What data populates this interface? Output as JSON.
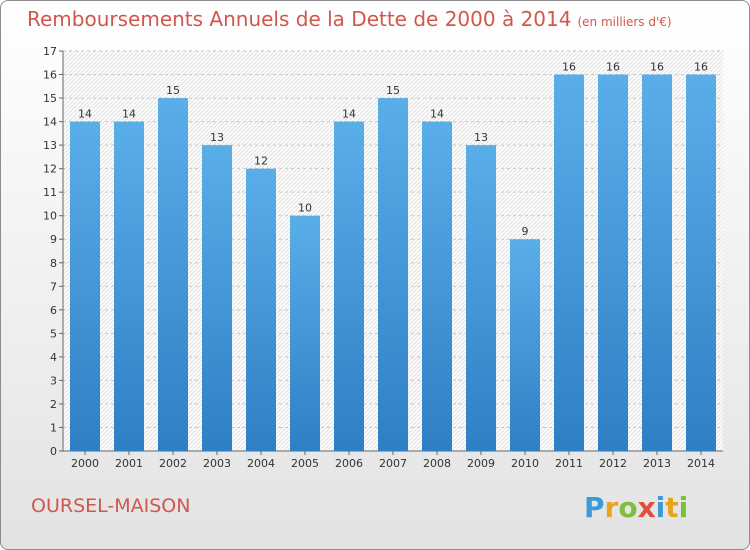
{
  "chart_data": {
    "type": "bar",
    "title": "Remboursements Annuels de la Dette de 2000 à 2014",
    "unit_note": "(en milliers d'€)",
    "categories": [
      "2000",
      "2001",
      "2002",
      "2003",
      "2004",
      "2005",
      "2006",
      "2007",
      "2008",
      "2009",
      "2010",
      "2011",
      "2012",
      "2013",
      "2014"
    ],
    "values": [
      14,
      14,
      15,
      13,
      12,
      10,
      14,
      15,
      14,
      13,
      9,
      16,
      16,
      16,
      16
    ],
    "ylim": [
      0,
      17
    ],
    "yticks": [
      0,
      1,
      2,
      3,
      4,
      5,
      6,
      7,
      8,
      9,
      10,
      11,
      12,
      13,
      14,
      15,
      16,
      17
    ],
    "xlabel": "",
    "ylabel": "",
    "grid": true,
    "bar_color_top": "#5aaee8",
    "bar_color_bottom": "#2f7fc4"
  },
  "commune": "OURSEL-MAISON",
  "logo": {
    "letters": [
      "P",
      "r",
      "o",
      "x",
      "i",
      "t",
      "i"
    ],
    "colors": [
      "#3a9bd9",
      "#e8a41c",
      "#7bbf3a",
      "#e04f39",
      "#3a9bd9",
      "#e8a41c",
      "#7bbf3a"
    ]
  }
}
